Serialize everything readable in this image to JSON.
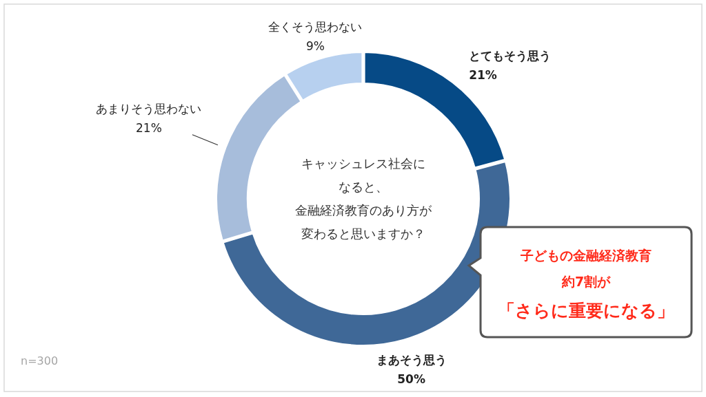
{
  "chart_data": {
    "type": "donut",
    "categories": [
      "とてもそう思う",
      "まあそう思う",
      "あまりそう思わない",
      "全くそう思わない"
    ],
    "values": [
      21,
      50,
      21,
      9
    ],
    "value_labels": [
      "21%",
      "50%",
      "21%",
      "9%"
    ],
    "colors": [
      "#064a86",
      "#3f6897",
      "#a7bddb",
      "#b7d0ef"
    ],
    "annotations": [
      "キャッシュレス社会に",
      "なると、",
      "金融経済教育のあり方が",
      "変わると思いますか？",
      "n=300",
      "子どもの金融経済教育",
      "約7割が",
      "「さらに重要になる」"
    ]
  }
}
